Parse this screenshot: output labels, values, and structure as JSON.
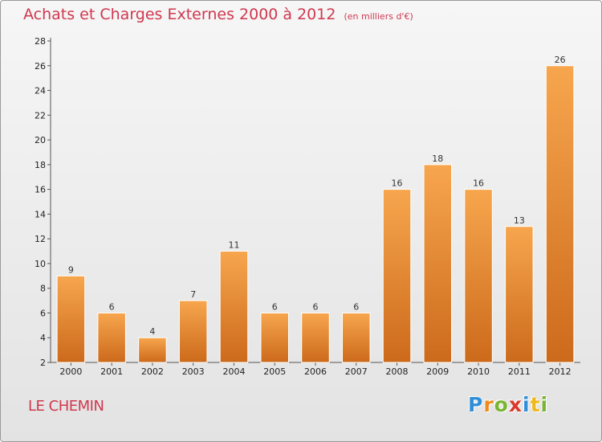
{
  "chart_data": {
    "type": "bar",
    "title": "Achats et Charges Externes 2000 à 2012",
    "subtitle": "(en milliers d'€)",
    "categories": [
      "2000",
      "2001",
      "2002",
      "2003",
      "2004",
      "2005",
      "2006",
      "2007",
      "2008",
      "2009",
      "2010",
      "2011",
      "2012"
    ],
    "values": [
      9,
      6,
      4,
      7,
      11,
      6,
      6,
      6,
      16,
      18,
      16,
      13,
      26
    ],
    "ylim": [
      2,
      28
    ],
    "yticks": [
      2,
      4,
      6,
      8,
      10,
      12,
      14,
      16,
      18,
      20,
      22,
      24,
      26,
      28
    ],
    "grid": false,
    "bar_color_top": "#f7a64e",
    "bar_color_bottom": "#cc6a1b"
  },
  "footer": {
    "commune": "LE CHEMIN",
    "logo_letters": [
      {
        "char": "P",
        "color": "#2f8fd8"
      },
      {
        "char": "r",
        "color": "#f08a1e"
      },
      {
        "char": "o",
        "color": "#7ab532"
      },
      {
        "char": "x",
        "color": "#d93a2b"
      },
      {
        "char": "i",
        "color": "#2f8fd8"
      },
      {
        "char": "t",
        "color": "#f0b81e"
      },
      {
        "char": "i",
        "color": "#7ab532"
      }
    ]
  }
}
